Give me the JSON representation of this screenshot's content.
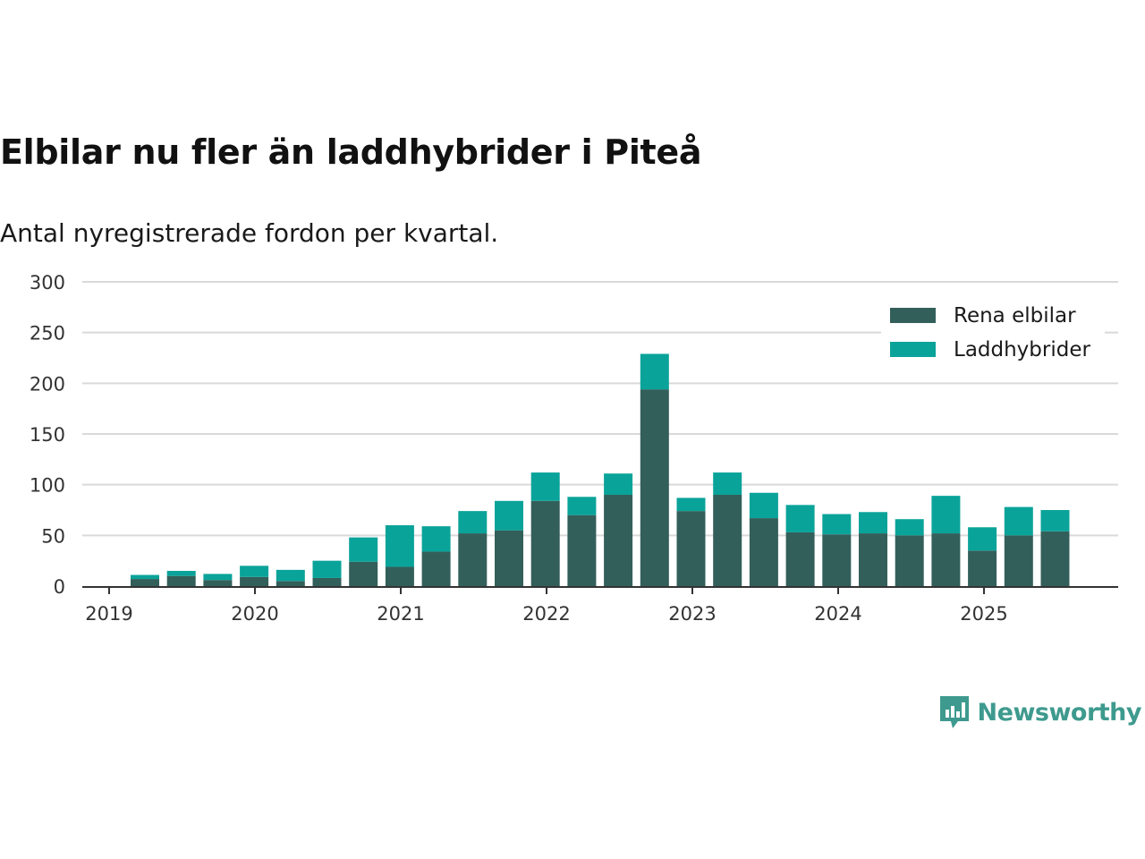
{
  "title": "Elbilar nu fler än laddhybrider i Piteå",
  "subtitle": "Antal nyregistrerade fordon per kvartal.",
  "brand": {
    "name": "Newsworthy",
    "icon": "newsworthy-logo-icon",
    "color": "#3e9a8e"
  },
  "colors": {
    "rena": "#335f5a",
    "ladd": "#0aa39a",
    "grid": "#d9d9d9",
    "axis": "#333333"
  },
  "chart_data": {
    "type": "bar",
    "stacked": true,
    "title": "Elbilar nu fler än laddhybrider i Piteå",
    "subtitle": "Antal nyregistrerade fordon per kvartal.",
    "xlabel": "",
    "ylabel": "",
    "ylim": [
      0,
      300
    ],
    "yticks": [
      0,
      50,
      100,
      150,
      200,
      250,
      300
    ],
    "year_ticks": [
      "2019",
      "2020",
      "2021",
      "2022",
      "2023",
      "2024",
      "2025"
    ],
    "legend_position": "top-right",
    "categories": [
      "2019 Q2",
      "2019 Q3",
      "2019 Q4",
      "2020 Q1",
      "2020 Q2",
      "2020 Q3",
      "2020 Q4",
      "2021 Q1",
      "2021 Q2",
      "2021 Q3",
      "2021 Q4",
      "2022 Q1",
      "2022 Q2",
      "2022 Q3",
      "2022 Q4",
      "2023 Q1",
      "2023 Q2",
      "2023 Q3",
      "2023 Q4",
      "2024 Q1",
      "2024 Q2",
      "2024 Q3",
      "2024 Q4",
      "2025 Q1",
      "2025 Q2",
      "2025 Q3"
    ],
    "series": [
      {
        "name": "Rena elbilar",
        "values": [
          7,
          10,
          6,
          9,
          5,
          8,
          24,
          19,
          34,
          52,
          55,
          84,
          70,
          90,
          194,
          74,
          90,
          67,
          53,
          51,
          52,
          50,
          52,
          35,
          50,
          54
        ]
      },
      {
        "name": "Laddhybrider",
        "values": [
          4,
          5,
          6,
          11,
          11,
          17,
          24,
          41,
          25,
          22,
          29,
          28,
          18,
          21,
          35,
          13,
          22,
          25,
          27,
          20,
          21,
          16,
          37,
          23,
          28,
          21
        ]
      }
    ]
  }
}
